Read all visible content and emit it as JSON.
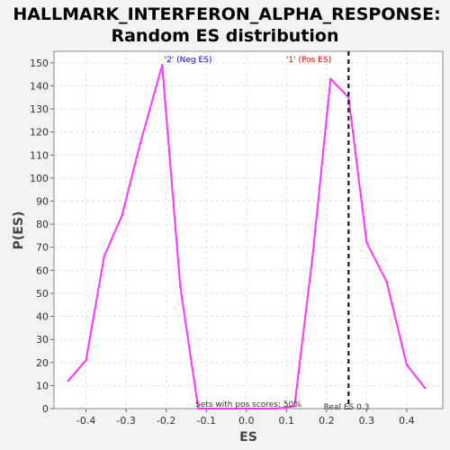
{
  "chart_data": {
    "type": "line",
    "title_line1": "HALLMARK_INTERFERON_ALPHA_RESPONSE:",
    "title_line2": "Random ES distribution",
    "xlabel": "ES",
    "ylabel": "P(ES)",
    "xlim": [
      -0.48,
      0.49
    ],
    "ylim": [
      0,
      155
    ],
    "x_ticks": [
      -0.4,
      -0.3,
      -0.2,
      -0.1,
      0.0,
      0.1,
      0.2,
      0.3,
      0.4
    ],
    "x_tick_labels": [
      "-0.4",
      "-0.3",
      "-0.2",
      "-0.1",
      "0.0",
      "0.1",
      "0.2",
      "0.3",
      "0.4"
    ],
    "y_ticks": [
      0,
      10,
      20,
      30,
      40,
      50,
      60,
      70,
      80,
      90,
      100,
      110,
      120,
      130,
      140,
      150
    ],
    "y_tick_labels": [
      "0",
      "10",
      "20",
      "30",
      "40",
      "50",
      "60",
      "70",
      "80",
      "90",
      "100",
      "110",
      "120",
      "130",
      "140",
      "150"
    ],
    "grid": true,
    "series": [
      {
        "color": "#ff33ff",
        "x": [
          -0.445,
          -0.4,
          -0.355,
          -0.31,
          -0.265,
          -0.21,
          -0.165,
          -0.12,
          -0.075,
          -0.03,
          0.03,
          0.075,
          0.12,
          0.165,
          0.21,
          0.255,
          0.3,
          0.35,
          0.4,
          0.445
        ],
        "y": [
          12,
          21,
          66,
          84,
          115,
          149,
          53,
          0,
          0,
          0,
          0,
          0,
          1,
          66,
          143,
          135,
          72,
          55,
          19,
          9
        ]
      }
    ],
    "annotations": {
      "neg_label": "'2' (Neg ES)",
      "neg_color": "#0000ff",
      "pos_label": "'1' (Pos ES)",
      "pos_color": "#ff0000",
      "pos_scores_text": "Sets with pos scores: 50%",
      "real_es_text": "Real ES 0.3",
      "real_es_x": 0.255
    }
  }
}
